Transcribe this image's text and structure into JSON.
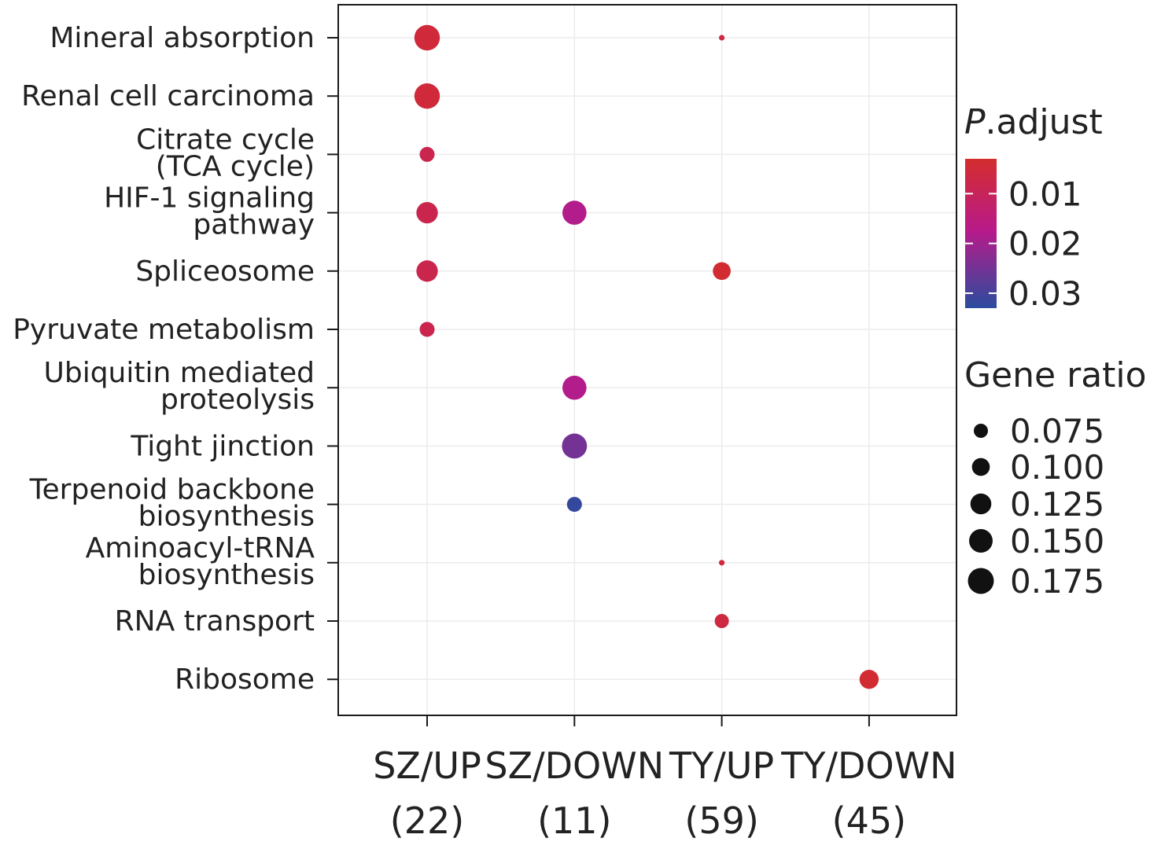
{
  "chart_data": {
    "type": "scatter",
    "subtype": "dot-plot",
    "categories": [
      [
        "Mineral absorption"
      ],
      [
        "Renal cell carcinoma"
      ],
      [
        "Citrate cycle",
        "(TCA cycle)"
      ],
      [
        "HIF-1 signaling",
        "pathway"
      ],
      [
        "Spliceosome"
      ],
      [
        "Pyruvate metabolism"
      ],
      [
        "Ubiquitin mediated",
        "proteolysis"
      ],
      [
        "Tight jinction"
      ],
      [
        "Terpenoid backbone",
        "biosynthesis"
      ],
      [
        "Aminoacyl-tRNA",
        "biosynthesis"
      ],
      [
        "RNA transport"
      ],
      [
        "Ribosome"
      ]
    ],
    "groups": [
      [
        "SZ/UP",
        "(22)"
      ],
      [
        "SZ/DOWN",
        "(11)"
      ],
      [
        "TY/UP",
        "(59)"
      ],
      [
        "TY/DOWN",
        "(45)"
      ]
    ],
    "points": [
      {
        "group": 0,
        "category": 0,
        "gene_ratio": 0.17,
        "p_adjust": 0.005
      },
      {
        "group": 0,
        "category": 1,
        "gene_ratio": 0.17,
        "p_adjust": 0.005
      },
      {
        "group": 0,
        "category": 2,
        "gene_ratio": 0.08,
        "p_adjust": 0.008
      },
      {
        "group": 0,
        "category": 3,
        "gene_ratio": 0.13,
        "p_adjust": 0.008
      },
      {
        "group": 0,
        "category": 4,
        "gene_ratio": 0.13,
        "p_adjust": 0.008
      },
      {
        "group": 0,
        "category": 5,
        "gene_ratio": 0.08,
        "p_adjust": 0.008
      },
      {
        "group": 1,
        "category": 3,
        "gene_ratio": 0.155,
        "p_adjust": 0.018
      },
      {
        "group": 1,
        "category": 6,
        "gene_ratio": 0.155,
        "p_adjust": 0.018
      },
      {
        "group": 1,
        "category": 7,
        "gene_ratio": 0.165,
        "p_adjust": 0.025
      },
      {
        "group": 1,
        "category": 8,
        "gene_ratio": 0.08,
        "p_adjust": 0.032
      },
      {
        "group": 2,
        "category": 0,
        "gene_ratio": 0.05,
        "p_adjust": 0.006
      },
      {
        "group": 2,
        "category": 4,
        "gene_ratio": 0.1,
        "p_adjust": 0.004
      },
      {
        "group": 2,
        "category": 9,
        "gene_ratio": 0.05,
        "p_adjust": 0.006
      },
      {
        "group": 2,
        "category": 10,
        "gene_ratio": 0.075,
        "p_adjust": 0.006
      },
      {
        "group": 3,
        "category": 11,
        "gene_ratio": 0.11,
        "p_adjust": 0.004
      }
    ],
    "color_legend": {
      "title_italic": "P",
      "title_rest": ".adjust",
      "min": 0.003,
      "max": 0.033,
      "ticks": [
        0.01,
        0.02,
        0.03
      ],
      "tick_labels": [
        "0.01",
        "0.02",
        "0.03"
      ],
      "colors": [
        "#d42d2d",
        "#b81a8a",
        "#2b4c9f"
      ]
    },
    "size_legend": {
      "title": "Gene ratio",
      "values": [
        0.075,
        0.1,
        0.125,
        0.15,
        0.175
      ],
      "labels": [
        "0.075",
        "0.100",
        "0.125",
        "0.150",
        "0.175"
      ]
    },
    "grid": true,
    "legend_position": "right"
  }
}
